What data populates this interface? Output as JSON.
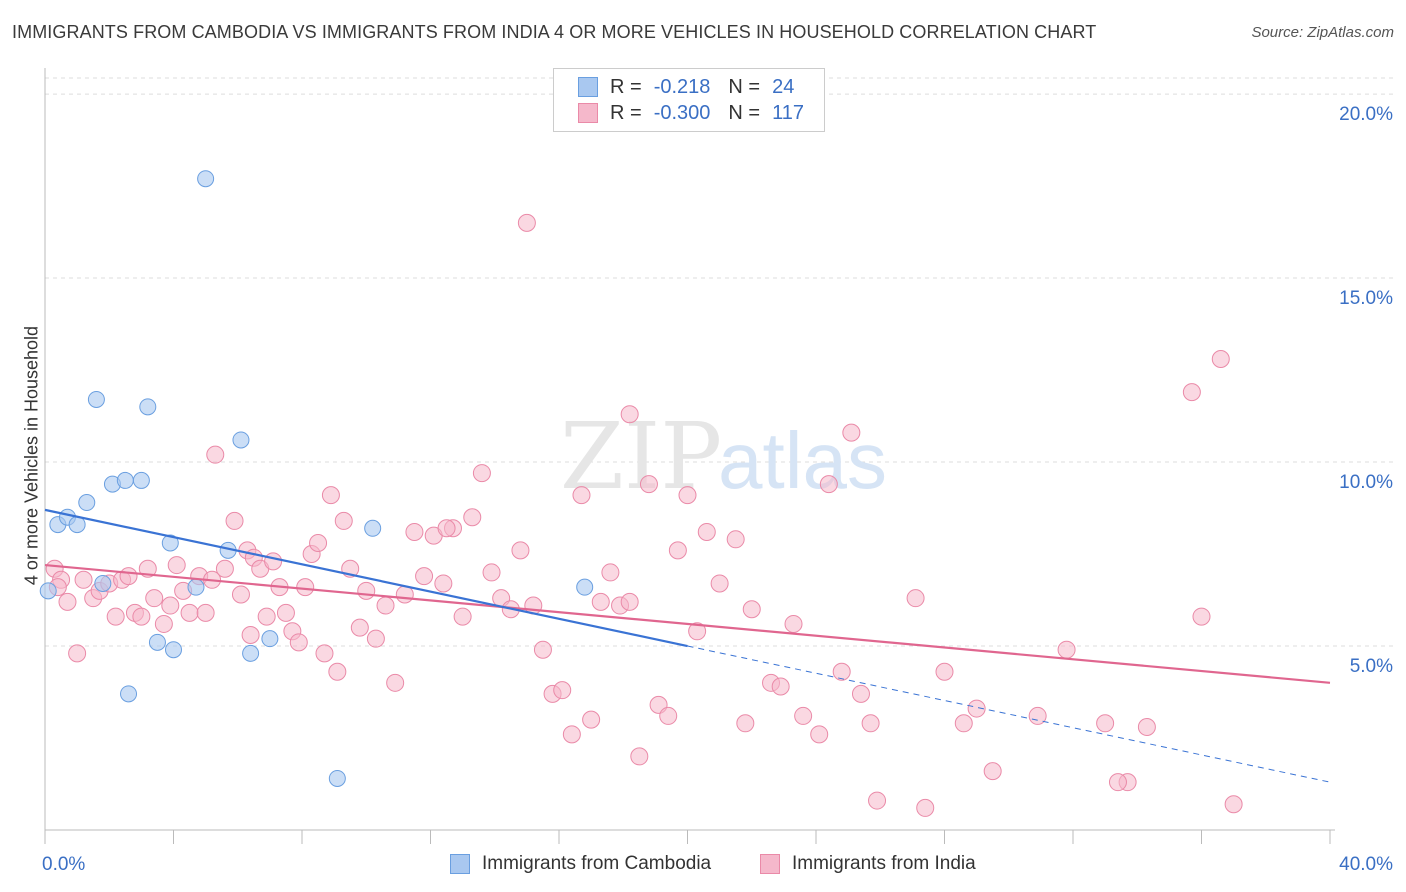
{
  "title": "IMMIGRANTS FROM CAMBODIA VS IMMIGRANTS FROM INDIA 4 OR MORE VEHICLES IN HOUSEHOLD CORRELATION CHART",
  "source": "Source: ZipAtlas.com",
  "watermark": {
    "zip": "ZIP",
    "atlas": "atlas"
  },
  "legend": {
    "rows": [
      {
        "r_label": "R =",
        "r_value": "-0.218",
        "n_label": "N =",
        "n_value": "24"
      },
      {
        "r_label": "R =",
        "r_value": "-0.300",
        "n_label": "N =",
        "n_value": "117"
      }
    ]
  },
  "colors": {
    "cambodia_fill": "#a9c8f0",
    "cambodia_stroke": "#6a9fe0",
    "cambodia_line": "#3a73d4",
    "india_fill": "#f5b8cb",
    "india_stroke": "#ea8aa8",
    "india_line": "#e0668f",
    "tick_label": "#3a6fc4",
    "grid": "#dddddd"
  },
  "chart_data": {
    "type": "scatter",
    "title": "IMMIGRANTS FROM CAMBODIA VS IMMIGRANTS FROM INDIA 4 OR MORE VEHICLES IN HOUSEHOLD CORRELATION CHART",
    "xlabel": "",
    "ylabel": "4 or more Vehicles in Household",
    "xlim": [
      0,
      40
    ],
    "ylim": [
      0,
      20.6
    ],
    "x_tick_labels": [
      {
        "value": 0,
        "label": "0.0%"
      },
      {
        "value": 40,
        "label": "40.0%"
      }
    ],
    "y_tick_labels": [
      {
        "value": 5,
        "label": "5.0%"
      },
      {
        "value": 10,
        "label": "10.0%"
      },
      {
        "value": 15,
        "label": "15.0%"
      },
      {
        "value": 20,
        "label": "20.0%"
      }
    ],
    "series": [
      {
        "name": "Immigrants from Cambodia",
        "color": "#6a9fe0",
        "points": [
          [
            0.1,
            6.5
          ],
          [
            0.4,
            8.3
          ],
          [
            0.7,
            8.5
          ],
          [
            1.0,
            8.3
          ],
          [
            1.3,
            8.9
          ],
          [
            1.6,
            11.7
          ],
          [
            1.8,
            6.7
          ],
          [
            2.1,
            9.4
          ],
          [
            2.5,
            9.5
          ],
          [
            3.0,
            9.5
          ],
          [
            3.2,
            11.5
          ],
          [
            2.6,
            3.7
          ],
          [
            3.9,
            7.8
          ],
          [
            3.5,
            5.1
          ],
          [
            4.0,
            4.9
          ],
          [
            4.7,
            6.6
          ],
          [
            5.0,
            17.7
          ],
          [
            5.7,
            7.6
          ],
          [
            6.1,
            10.6
          ],
          [
            6.4,
            4.8
          ],
          [
            7.0,
            5.2
          ],
          [
            9.1,
            1.4
          ],
          [
            10.2,
            8.2
          ],
          [
            16.8,
            6.6
          ]
        ]
      },
      {
        "name": "Immigrants from India",
        "color": "#ea8aa8",
        "points": [
          [
            0.3,
            7.1
          ],
          [
            0.5,
            6.8
          ],
          [
            0.7,
            6.2
          ],
          [
            1.0,
            4.8
          ],
          [
            1.2,
            6.8
          ],
          [
            1.5,
            6.3
          ],
          [
            1.7,
            6.5
          ],
          [
            2.0,
            6.7
          ],
          [
            2.2,
            5.8
          ],
          [
            2.4,
            6.8
          ],
          [
            2.6,
            6.9
          ],
          [
            2.8,
            5.9
          ],
          [
            3.0,
            5.8
          ],
          [
            3.2,
            7.1
          ],
          [
            3.4,
            6.3
          ],
          [
            3.7,
            5.6
          ],
          [
            3.9,
            6.1
          ],
          [
            4.1,
            7.2
          ],
          [
            4.3,
            6.5
          ],
          [
            4.5,
            5.9
          ],
          [
            4.8,
            6.9
          ],
          [
            5.0,
            5.9
          ],
          [
            5.2,
            6.8
          ],
          [
            5.3,
            10.2
          ],
          [
            5.6,
            7.1
          ],
          [
            5.9,
            8.4
          ],
          [
            6.1,
            6.4
          ],
          [
            6.3,
            7.6
          ],
          [
            6.5,
            7.4
          ],
          [
            6.7,
            7.1
          ],
          [
            6.9,
            5.8
          ],
          [
            7.1,
            7.3
          ],
          [
            7.3,
            6.6
          ],
          [
            7.5,
            5.9
          ],
          [
            7.7,
            5.4
          ],
          [
            7.9,
            5.1
          ],
          [
            8.1,
            6.6
          ],
          [
            8.3,
            7.5
          ],
          [
            8.5,
            7.8
          ],
          [
            8.7,
            4.8
          ],
          [
            8.9,
            9.1
          ],
          [
            9.1,
            4.3
          ],
          [
            9.3,
            8.4
          ],
          [
            9.5,
            7.1
          ],
          [
            9.8,
            5.5
          ],
          [
            10.0,
            6.5
          ],
          [
            10.3,
            5.2
          ],
          [
            10.6,
            6.1
          ],
          [
            10.9,
            4.0
          ],
          [
            11.2,
            6.4
          ],
          [
            11.5,
            8.1
          ],
          [
            11.8,
            6.9
          ],
          [
            12.1,
            8.0
          ],
          [
            12.4,
            6.7
          ],
          [
            12.7,
            8.2
          ],
          [
            13.0,
            5.8
          ],
          [
            13.3,
            8.5
          ],
          [
            13.6,
            9.7
          ],
          [
            13.9,
            7.0
          ],
          [
            14.2,
            6.3
          ],
          [
            14.5,
            6.0
          ],
          [
            14.8,
            7.6
          ],
          [
            15.0,
            16.5
          ],
          [
            15.2,
            6.1
          ],
          [
            15.5,
            4.9
          ],
          [
            15.8,
            3.7
          ],
          [
            16.1,
            3.8
          ],
          [
            16.4,
            2.6
          ],
          [
            16.7,
            9.1
          ],
          [
            17.0,
            3.0
          ],
          [
            17.3,
            6.2
          ],
          [
            17.6,
            7.0
          ],
          [
            17.9,
            6.1
          ],
          [
            18.2,
            11.3
          ],
          [
            18.5,
            2.0
          ],
          [
            18.8,
            9.4
          ],
          [
            19.1,
            3.4
          ],
          [
            19.4,
            3.1
          ],
          [
            19.7,
            7.6
          ],
          [
            20.0,
            9.1
          ],
          [
            20.3,
            5.4
          ],
          [
            20.6,
            8.1
          ],
          [
            21.0,
            6.7
          ],
          [
            21.5,
            7.9
          ],
          [
            21.8,
            2.9
          ],
          [
            22.0,
            6.0
          ],
          [
            22.6,
            4.0
          ],
          [
            22.9,
            3.9
          ],
          [
            23.3,
            5.6
          ],
          [
            23.6,
            3.1
          ],
          [
            24.1,
            2.6
          ],
          [
            24.4,
            9.4
          ],
          [
            24.8,
            4.3
          ],
          [
            25.1,
            10.8
          ],
          [
            25.4,
            3.7
          ],
          [
            25.7,
            2.9
          ],
          [
            25.9,
            0.8
          ],
          [
            27.1,
            6.3
          ],
          [
            27.4,
            0.6
          ],
          [
            28.0,
            4.3
          ],
          [
            28.6,
            2.9
          ],
          [
            29.0,
            3.3
          ],
          [
            29.5,
            1.6
          ],
          [
            30.9,
            3.1
          ],
          [
            31.8,
            4.9
          ],
          [
            33.0,
            2.9
          ],
          [
            33.7,
            1.3
          ],
          [
            34.3,
            2.8
          ],
          [
            35.7,
            11.9
          ],
          [
            36.0,
            5.8
          ],
          [
            36.6,
            12.8
          ],
          [
            37.0,
            0.7
          ],
          [
            0.4,
            6.6
          ],
          [
            33.4,
            1.3
          ],
          [
            18.2,
            6.2
          ],
          [
            12.5,
            8.2
          ],
          [
            6.4,
            5.3
          ]
        ]
      }
    ],
    "trend_lines": [
      {
        "series": "Immigrants from Cambodia",
        "x": [
          0,
          20
        ],
        "y": [
          8.7,
          5.0
        ],
        "dashed_extension": {
          "x": [
            20,
            40
          ],
          "y": [
            5.0,
            1.3
          ]
        }
      },
      {
        "series": "Immigrants from India",
        "x": [
          0,
          40
        ],
        "y": [
          7.2,
          4.0
        ]
      }
    ],
    "legend_placement": "bottom-center"
  },
  "bottom_legend": {
    "cambodia": "Immigrants from Cambodia",
    "india": "Immigrants from India"
  }
}
